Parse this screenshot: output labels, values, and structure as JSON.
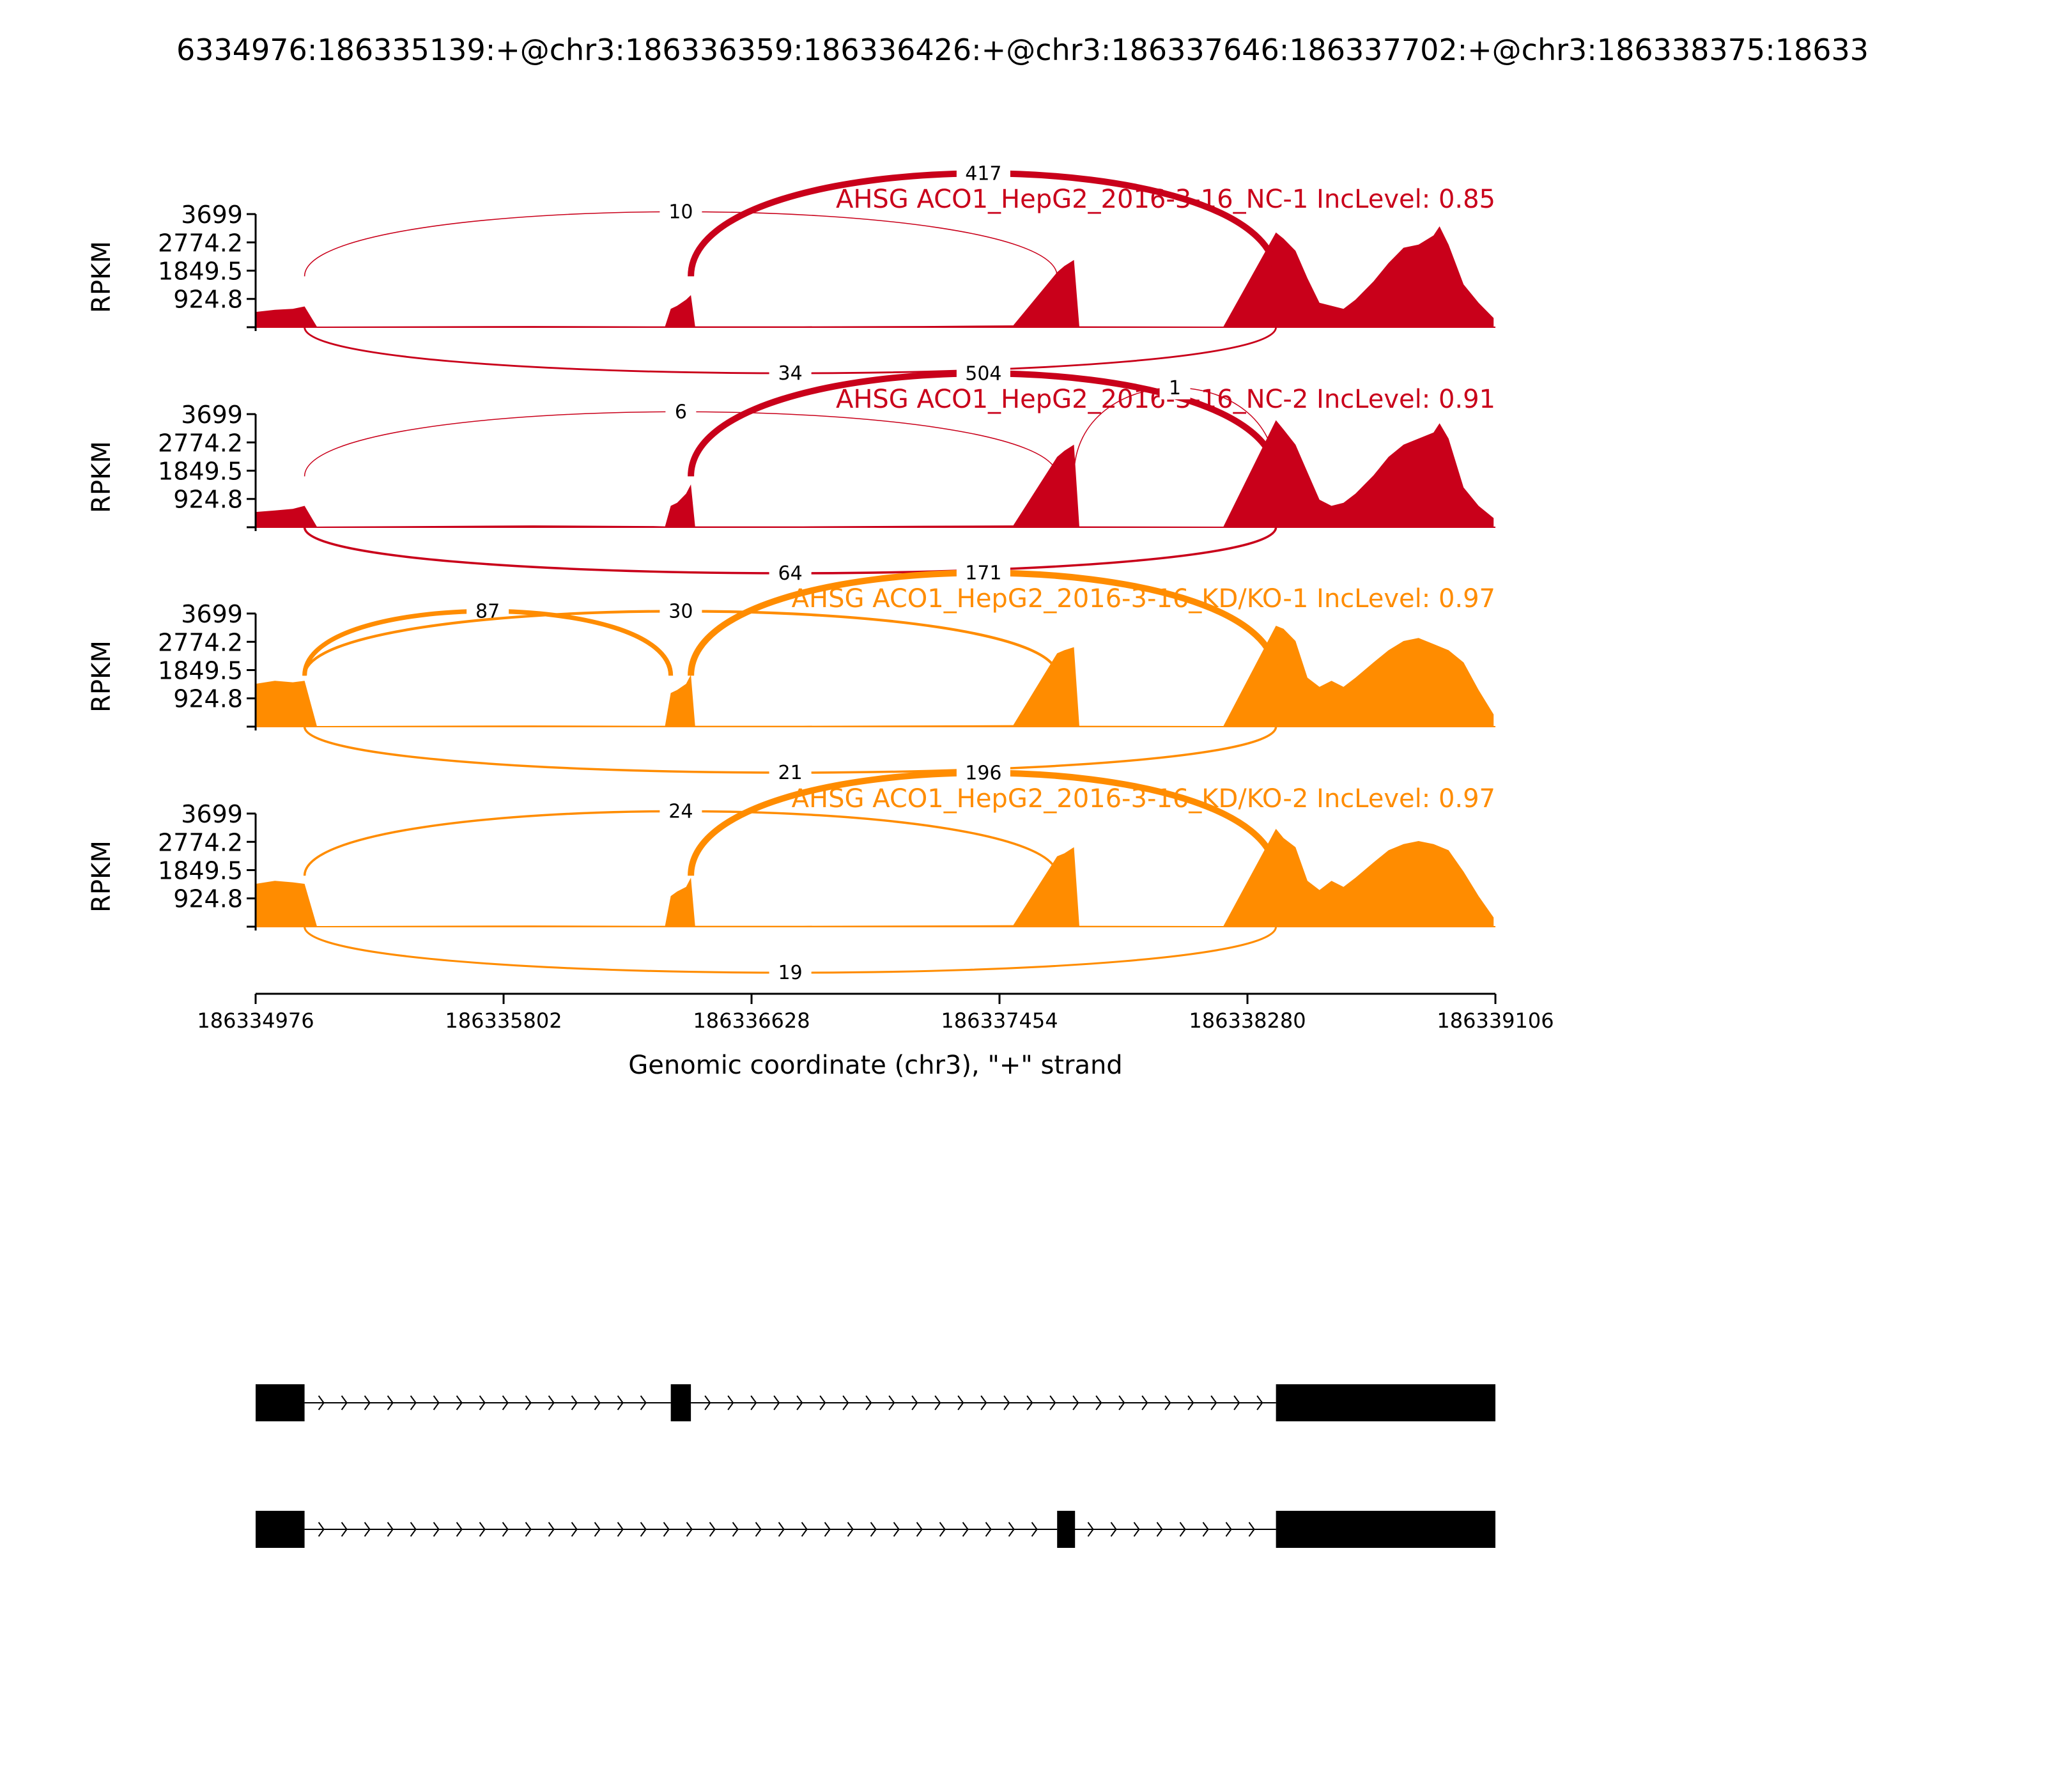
{
  "figure_title": "6334976:186335139:+@chr3:186336359:186336426:+@chr3:186337646:186337702:+@chr3:186338375:18633",
  "colors": {
    "nc": "#c9001a",
    "kd": "#ff8c00",
    "axis": "#000000"
  },
  "chart_data": {
    "type": "area",
    "xlabel": "Genomic coordinate (chr3), \"+\" strand",
    "ylabel": "RPKM",
    "xlim": [
      186334976,
      186339106
    ],
    "xticks": [
      186334976,
      186335802,
      186336628,
      186337454,
      186338280,
      186339106
    ],
    "ylim": [
      0,
      3699
    ],
    "yticks": [
      924.8,
      1849.5,
      2774.2,
      3699
    ],
    "ytick_labels": [
      "924.8",
      "1849.5",
      "2774.2",
      "3699"
    ],
    "samples": [
      {
        "title": "AHSG ACO1_HepG2_2016-3-16_NC-1 IncLevel: 0.85",
        "color": "nc",
        "coverage": [
          [
            186334976,
            500
          ],
          [
            186335040,
            570
          ],
          [
            186335100,
            600
          ],
          [
            186335139,
            680
          ],
          [
            186335180,
            20
          ],
          [
            186335900,
            40
          ],
          [
            186336300,
            30
          ],
          [
            186336340,
            30
          ],
          [
            186336359,
            600
          ],
          [
            186336380,
            700
          ],
          [
            186336410,
            900
          ],
          [
            186336426,
            1050
          ],
          [
            186336440,
            30
          ],
          [
            186336800,
            30
          ],
          [
            186337200,
            40
          ],
          [
            186337500,
            60
          ],
          [
            186337646,
            1800
          ],
          [
            186337670,
            2000
          ],
          [
            186337702,
            2200
          ],
          [
            186337720,
            30
          ],
          [
            186338200,
            20
          ],
          [
            186338375,
            3100
          ],
          [
            186338400,
            2900
          ],
          [
            186338440,
            2500
          ],
          [
            186338480,
            1600
          ],
          [
            186338520,
            800
          ],
          [
            186338560,
            700
          ],
          [
            186338600,
            600
          ],
          [
            186338640,
            900
          ],
          [
            186338700,
            1500
          ],
          [
            186338750,
            2100
          ],
          [
            186338800,
            2600
          ],
          [
            186338850,
            2700
          ],
          [
            186338900,
            3000
          ],
          [
            186338920,
            3300
          ],
          [
            186338950,
            2700
          ],
          [
            186339000,
            1400
          ],
          [
            186339050,
            800
          ],
          [
            186339100,
            300
          ]
        ],
        "junctions": [
          {
            "from": 186335139,
            "to": 186338375,
            "count": "34",
            "side": "below",
            "weight": 34
          },
          {
            "from": 186335139,
            "to": 186337646,
            "count": "10",
            "side": "above",
            "weight": 10
          },
          {
            "from": 186336426,
            "to": 186338375,
            "count": "417",
            "side": "above",
            "weight": 417
          }
        ]
      },
      {
        "title": "AHSG ACO1_HepG2_2016-3-16_NC-2 IncLevel: 0.91",
        "color": "nc",
        "coverage": [
          [
            186334976,
            500
          ],
          [
            186335040,
            550
          ],
          [
            186335100,
            600
          ],
          [
            186335139,
            700
          ],
          [
            186335180,
            20
          ],
          [
            186335900,
            60
          ],
          [
            186336300,
            40
          ],
          [
            186336340,
            30
          ],
          [
            186336359,
            700
          ],
          [
            186336380,
            800
          ],
          [
            186336410,
            1100
          ],
          [
            186336426,
            1400
          ],
          [
            186336440,
            30
          ],
          [
            186336800,
            30
          ],
          [
            186337200,
            50
          ],
          [
            186337500,
            60
          ],
          [
            186337646,
            2300
          ],
          [
            186337670,
            2500
          ],
          [
            186337702,
            2700
          ],
          [
            186337720,
            30
          ],
          [
            186338200,
            20
          ],
          [
            186338375,
            3500
          ],
          [
            186338400,
            3200
          ],
          [
            186338440,
            2700
          ],
          [
            186338480,
            1800
          ],
          [
            186338520,
            900
          ],
          [
            186338560,
            700
          ],
          [
            186338600,
            800
          ],
          [
            186338640,
            1100
          ],
          [
            186338700,
            1700
          ],
          [
            186338750,
            2300
          ],
          [
            186338800,
            2700
          ],
          [
            186338850,
            2900
          ],
          [
            186338900,
            3100
          ],
          [
            186338920,
            3400
          ],
          [
            186338950,
            2900
          ],
          [
            186339000,
            1300
          ],
          [
            186339050,
            700
          ],
          [
            186339100,
            300
          ]
        ],
        "junctions": [
          {
            "from": 186335139,
            "to": 186338375,
            "count": "64",
            "side": "below",
            "weight": 64
          },
          {
            "from": 186335139,
            "to": 186337646,
            "count": "6",
            "side": "above",
            "weight": 6
          },
          {
            "from": 186336426,
            "to": 186338375,
            "count": "504",
            "side": "above",
            "weight": 504
          },
          {
            "from": 186337702,
            "to": 186338375,
            "count": "1",
            "side": "above",
            "weight": 1
          }
        ]
      },
      {
        "title": "AHSG ACO1_HepG2_2016-3-16_KD/KO-1 IncLevel: 0.97",
        "color": "kd",
        "coverage": [
          [
            186334976,
            1400
          ],
          [
            186335040,
            1500
          ],
          [
            186335100,
            1450
          ],
          [
            186335139,
            1500
          ],
          [
            186335180,
            20
          ],
          [
            186335900,
            40
          ],
          [
            186336300,
            30
          ],
          [
            186336340,
            30
          ],
          [
            186336359,
            1100
          ],
          [
            186336380,
            1200
          ],
          [
            186336410,
            1400
          ],
          [
            186336426,
            1700
          ],
          [
            186336440,
            30
          ],
          [
            186336800,
            30
          ],
          [
            186337200,
            40
          ],
          [
            186337500,
            50
          ],
          [
            186337646,
            2400
          ],
          [
            186337670,
            2500
          ],
          [
            186337702,
            2600
          ],
          [
            186337720,
            30
          ],
          [
            186338200,
            20
          ],
          [
            186338375,
            3300
          ],
          [
            186338400,
            3200
          ],
          [
            186338440,
            2800
          ],
          [
            186338480,
            1600
          ],
          [
            186338520,
            1300
          ],
          [
            186338560,
            1500
          ],
          [
            186338600,
            1300
          ],
          [
            186338640,
            1600
          ],
          [
            186338700,
            2100
          ],
          [
            186338750,
            2500
          ],
          [
            186338800,
            2800
          ],
          [
            186338850,
            2900
          ],
          [
            186338900,
            2700
          ],
          [
            186338950,
            2500
          ],
          [
            186339000,
            2100
          ],
          [
            186339050,
            1200
          ],
          [
            186339100,
            400
          ]
        ],
        "junctions": [
          {
            "from": 186335139,
            "to": 186338375,
            "count": "21",
            "side": "below",
            "weight": 21
          },
          {
            "from": 186335139,
            "to": 186336359,
            "count": "87",
            "side": "above",
            "weight": 87
          },
          {
            "from": 186335139,
            "to": 186337646,
            "count": "30",
            "side": "above",
            "weight": 30
          },
          {
            "from": 186336426,
            "to": 186338375,
            "count": "171",
            "side": "above",
            "weight": 171
          }
        ]
      },
      {
        "title": "AHSG ACO1_HepG2_2016-3-16_KD/KO-2 IncLevel: 0.97",
        "color": "kd",
        "coverage": [
          [
            186334976,
            1400
          ],
          [
            186335040,
            1500
          ],
          [
            186335100,
            1450
          ],
          [
            186335139,
            1400
          ],
          [
            186335180,
            20
          ],
          [
            186335900,
            40
          ],
          [
            186336300,
            30
          ],
          [
            186336340,
            30
          ],
          [
            186336359,
            1000
          ],
          [
            186336380,
            1150
          ],
          [
            186336410,
            1300
          ],
          [
            186336426,
            1600
          ],
          [
            186336440,
            30
          ],
          [
            186336800,
            30
          ],
          [
            186337200,
            40
          ],
          [
            186337500,
            50
          ],
          [
            186337646,
            2300
          ],
          [
            186337670,
            2400
          ],
          [
            186337702,
            2600
          ],
          [
            186337720,
            30
          ],
          [
            186338200,
            20
          ],
          [
            186338375,
            3200
          ],
          [
            186338400,
            2900
          ],
          [
            186338440,
            2600
          ],
          [
            186338480,
            1500
          ],
          [
            186338520,
            1200
          ],
          [
            186338560,
            1500
          ],
          [
            186338600,
            1300
          ],
          [
            186338640,
            1600
          ],
          [
            186338700,
            2100
          ],
          [
            186338750,
            2500
          ],
          [
            186338800,
            2700
          ],
          [
            186338850,
            2800
          ],
          [
            186338900,
            2700
          ],
          [
            186338950,
            2500
          ],
          [
            186339000,
            1800
          ],
          [
            186339050,
            1000
          ],
          [
            186339100,
            300
          ]
        ],
        "junctions": [
          {
            "from": 186335139,
            "to": 186338375,
            "count": "19",
            "side": "below",
            "weight": 19
          },
          {
            "from": 186335139,
            "to": 186337646,
            "count": "24",
            "side": "above",
            "weight": 24
          },
          {
            "from": 186336426,
            "to": 186338375,
            "count": "196",
            "side": "above",
            "weight": 196
          }
        ]
      }
    ],
    "isoforms": [
      {
        "exons": [
          [
            186334976,
            186335139
          ],
          [
            186336359,
            186336426
          ],
          [
            186338375,
            186339106
          ]
        ]
      },
      {
        "exons": [
          [
            186334976,
            186335139
          ],
          [
            186337646,
            186337702
          ],
          [
            186338375,
            186339106
          ]
        ]
      }
    ]
  }
}
